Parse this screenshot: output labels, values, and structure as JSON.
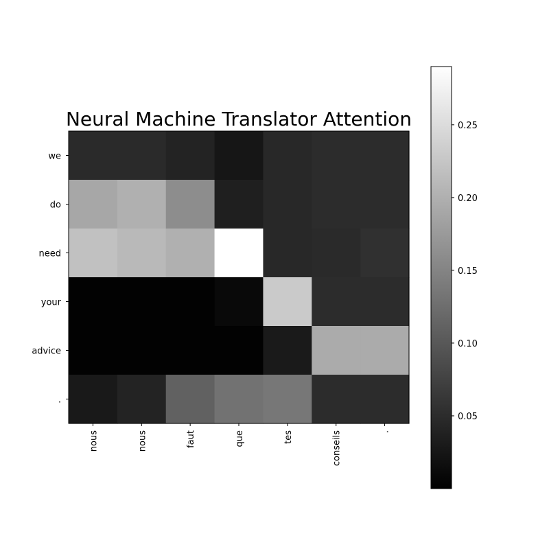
{
  "chart_data": {
    "type": "heatmap",
    "title": "Neural Machine Translator Attention",
    "x_categories": [
      "nous",
      "nous",
      "faut",
      "que",
      "tes",
      "conseils",
      "."
    ],
    "y_categories": [
      "we",
      "do",
      "need",
      "your",
      "advice",
      "."
    ],
    "values": [
      [
        0.048,
        0.048,
        0.04,
        0.025,
        0.045,
        0.05,
        0.05
      ],
      [
        0.19,
        0.2,
        0.16,
        0.035,
        0.045,
        0.05,
        0.05
      ],
      [
        0.22,
        0.21,
        0.2,
        0.29,
        0.045,
        0.048,
        0.055
      ],
      [
        0.002,
        0.002,
        0.002,
        0.01,
        0.23,
        0.05,
        0.05
      ],
      [
        0.002,
        0.002,
        0.002,
        0.002,
        0.03,
        0.195,
        0.195
      ],
      [
        0.028,
        0.04,
        0.11,
        0.13,
        0.135,
        0.05,
        0.05
      ]
    ],
    "colormap": "gray",
    "vmin": 0.0,
    "vmax": 0.29,
    "colorbar_ticks": [
      0.05,
      0.1,
      0.15,
      0.2,
      0.25
    ],
    "colorbar_tick_labels": [
      "0.05",
      "0.10",
      "0.15",
      "0.20",
      "0.25"
    ]
  }
}
